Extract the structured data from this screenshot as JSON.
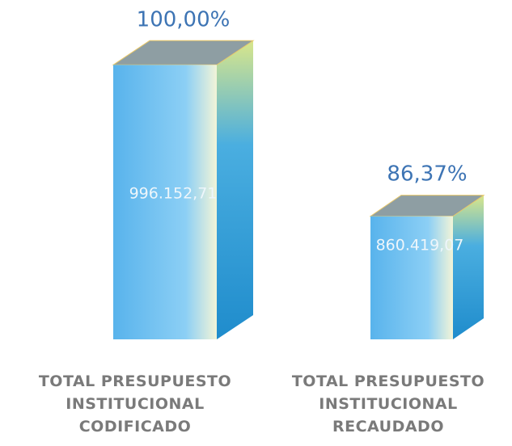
{
  "chart_data": {
    "type": "bar3d",
    "categories": [
      "TOTAL PRESUPUESTO INSTITUCIONAL CODIFICADO",
      "TOTAL PRESUPUESTO INSTITUCIONAL RECAUDADO"
    ],
    "values": [
      996152.71,
      860419.07
    ],
    "value_labels": [
      "996.152,71",
      "860.419,07"
    ],
    "percentages": [
      100,
      86.37
    ],
    "percentage_labels": [
      "100,00%",
      "86,37%"
    ],
    "color": "#5cb6ee",
    "ylim": [
      750000,
      1000000
    ]
  }
}
